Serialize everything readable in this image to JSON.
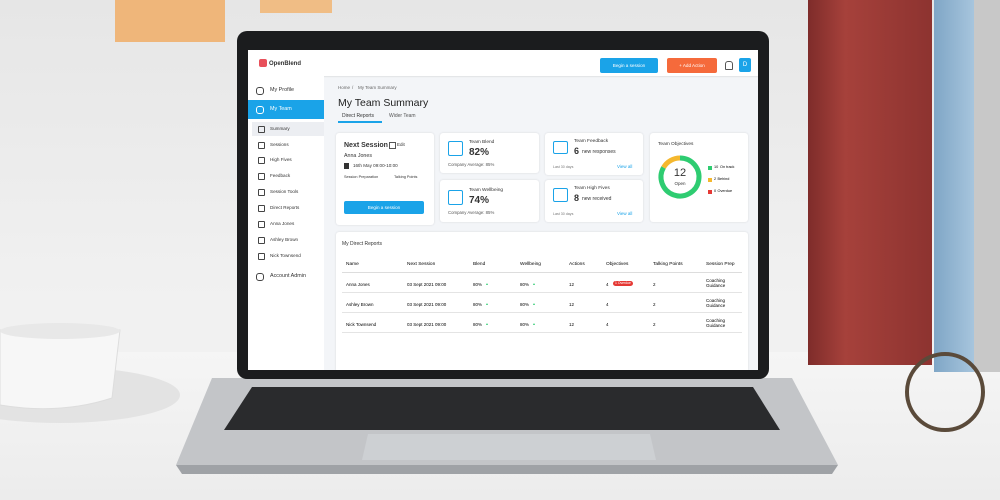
{
  "header": {
    "logo": "OpenBlend",
    "begin_button": "Begin a session",
    "add_button": "+ Add Action",
    "avatar": "D"
  },
  "sidebar": {
    "items": [
      "My Profile",
      "My Team",
      "Summary",
      "Sessions",
      "High Fives",
      "Feedback",
      "Session Tools",
      "Direct Reports",
      "Anna Jones",
      "Ashley Brown",
      "Nick Townsend",
      "Account Admin"
    ]
  },
  "breadcrumb": {
    "home": "Home",
    "separator": "/",
    "current": "My Team Summary"
  },
  "page": {
    "title": "My Team Summary",
    "tabs": [
      "Direct Reports",
      "Wider Team"
    ]
  },
  "next_session": {
    "title": "Next Session",
    "edit": "Edit",
    "person": "Anna Jones",
    "time": "16th May 09:00-10:00",
    "links": [
      "Session Preparation",
      "Talking Points"
    ],
    "button": "Begin a session"
  },
  "team_blend": {
    "title": "Team Blend",
    "value": "82%",
    "average": "Company Average: 85%"
  },
  "team_wellbeing": {
    "title": "Team Wellbeing",
    "value": "74%",
    "average": "Company Average: 85%"
  },
  "team_feedback": {
    "title": "Team Feedback",
    "count": "6",
    "text": "new responses",
    "period": "Last 30 days",
    "link": "View all"
  },
  "team_high_fives": {
    "title": "Team High Fives",
    "count": "8",
    "text": "new received",
    "period": "Last 30 days",
    "link": "View all"
  },
  "objectives": {
    "title": "Team Objectives",
    "total": 12,
    "total_label": "Open",
    "segments": [
      {
        "value": 10,
        "label": "On track",
        "color": "#2ecc71"
      },
      {
        "value": 2,
        "label": "Behind",
        "color": "#f5b82e"
      },
      {
        "value": 0,
        "label": "Overdue",
        "color": "#e53935"
      }
    ]
  },
  "table": {
    "title": "My Direct Reports",
    "columns": [
      "Name",
      "Next Session",
      "Blend",
      "Wellbeing",
      "Actions",
      "Objectives",
      "Talking Points",
      "Session Prep"
    ],
    "rows": [
      {
        "cells": [
          "Anna Jones",
          "03 Sept 2021 09:00",
          "80%",
          "80%",
          "12",
          "4",
          "2",
          "Coaching Guidance"
        ],
        "badge": "1 Overdue"
      },
      {
        "cells": [
          "Ashley Brown",
          "03 Sept 2021 09:00",
          "80%",
          "80%",
          "12",
          "4",
          "2",
          "Coaching Guidance"
        ]
      },
      {
        "cells": [
          "Nick Townsend",
          "03 Sept 2021 09:00",
          "80%",
          "80%",
          "12",
          "4",
          "2",
          "Coaching Guidance"
        ]
      }
    ]
  }
}
